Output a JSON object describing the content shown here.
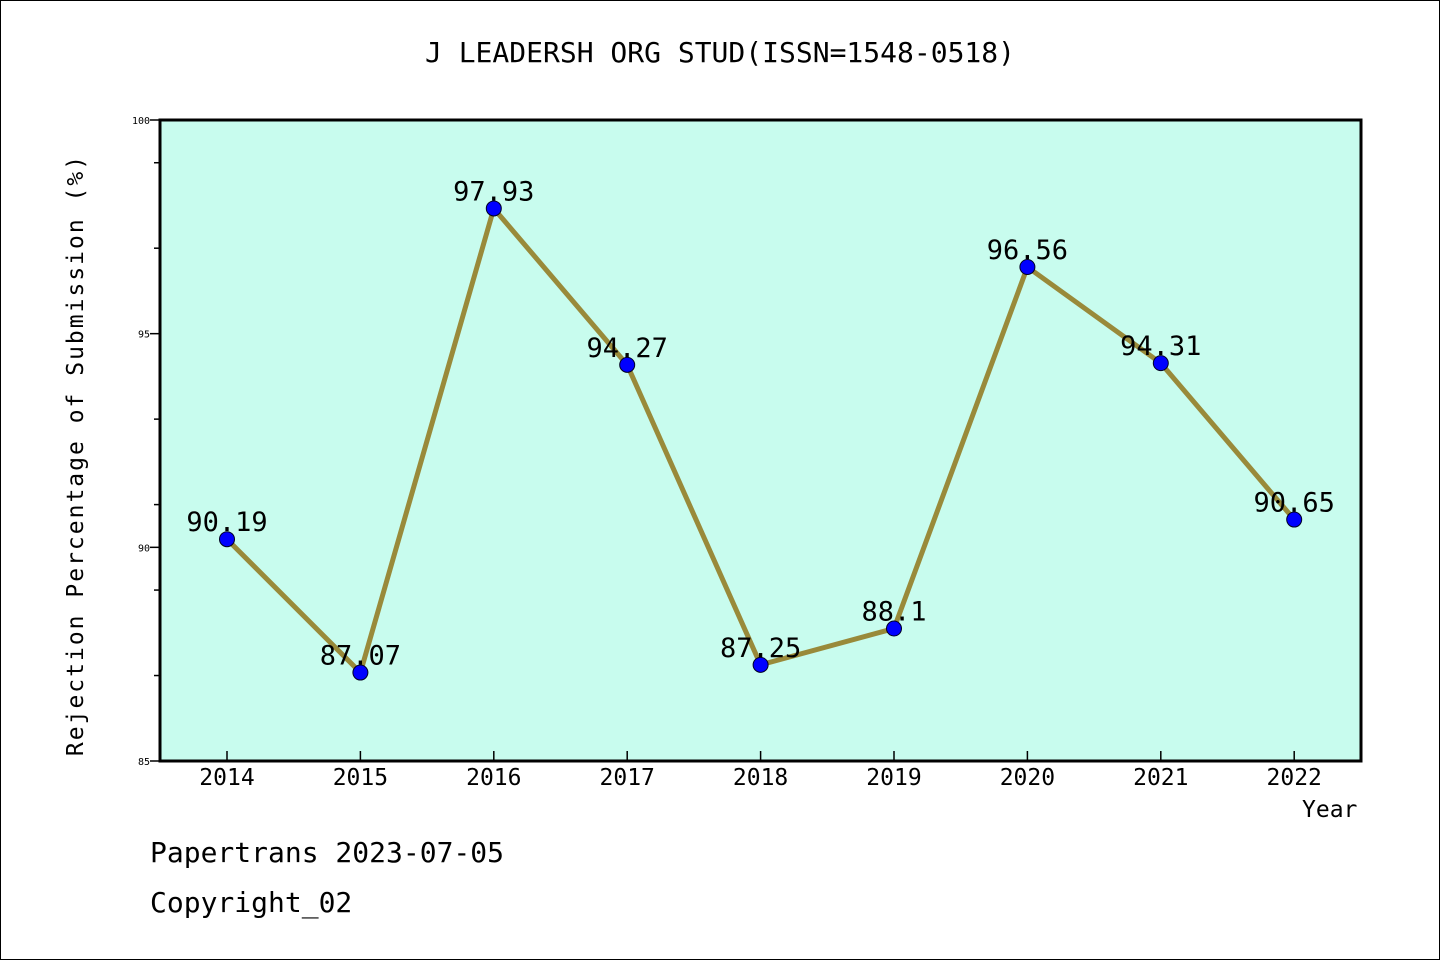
{
  "chart_data": {
    "type": "line",
    "title": "J LEADERSH ORG STUD(ISSN=1548-0518)",
    "xlabel": "Year",
    "ylabel": "Rejection Percentage of Submission (%)",
    "categories": [
      "2014",
      "2015",
      "2016",
      "2017",
      "2018",
      "2019",
      "2020",
      "2021",
      "2022"
    ],
    "series": [
      {
        "values": [
          90.19,
          87.07,
          97.93,
          94.27,
          87.25,
          88.1,
          96.56,
          94.31,
          90.65
        ],
        "labels": [
          "90.19",
          "87.07",
          "97.93",
          "94.27",
          "87.25",
          "88.1",
          "96.56",
          "94.31",
          "90.65"
        ]
      }
    ],
    "ylim": [
      85,
      100
    ],
    "yticks": [
      "85",
      "90",
      "95",
      "100"
    ],
    "grid": false,
    "legend": "none",
    "colors": {
      "plot_background": "#c8fcee",
      "line": "#998a3a",
      "marker": "#0000ff"
    }
  },
  "footer": {
    "line1": "Papertrans 2023-07-05",
    "line2": "Copyright_02"
  }
}
